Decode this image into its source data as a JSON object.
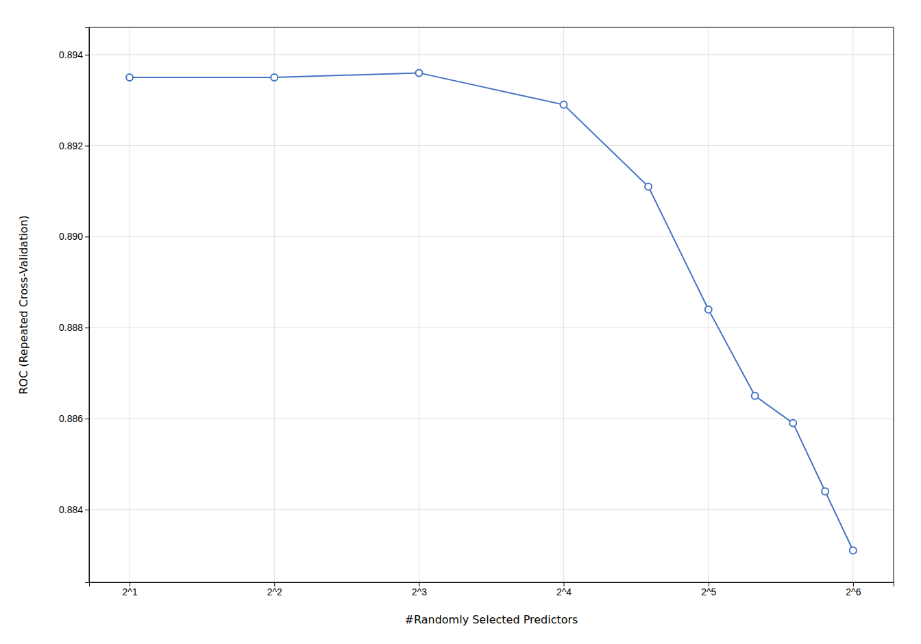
{
  "chart_data": {
    "type": "line",
    "xlabel": "#Randomly Selected Predictors",
    "ylabel": "ROC (Repeated Cross-Validation)",
    "x": [
      1,
      2,
      3,
      4,
      4.585,
      5,
      5.322,
      5.585,
      5.807,
      6
    ],
    "values": [
      0.8935,
      0.8935,
      0.8936,
      0.8929,
      0.8911,
      0.8884,
      0.8865,
      0.8859,
      0.8844,
      0.8831
    ],
    "color": "#4472C4",
    "marker": "circle",
    "xlim": [
      0.72,
      6.28
    ],
    "xticks": [
      {
        "value": 1,
        "label": "2^1"
      },
      {
        "value": 2,
        "label": "2^2"
      },
      {
        "value": 3,
        "label": "2^3"
      },
      {
        "value": 4,
        "label": "2^4"
      },
      {
        "value": 5,
        "label": "2^5"
      },
      {
        "value": 6,
        "label": "2^6"
      }
    ],
    "ylim": [
      0.8824,
      0.8946
    ],
    "yticks": [
      0.884,
      0.886,
      0.888,
      {
        "value": 0.89,
        "label": "0.890"
      },
      0.892,
      0.894
    ],
    "grid": true
  }
}
